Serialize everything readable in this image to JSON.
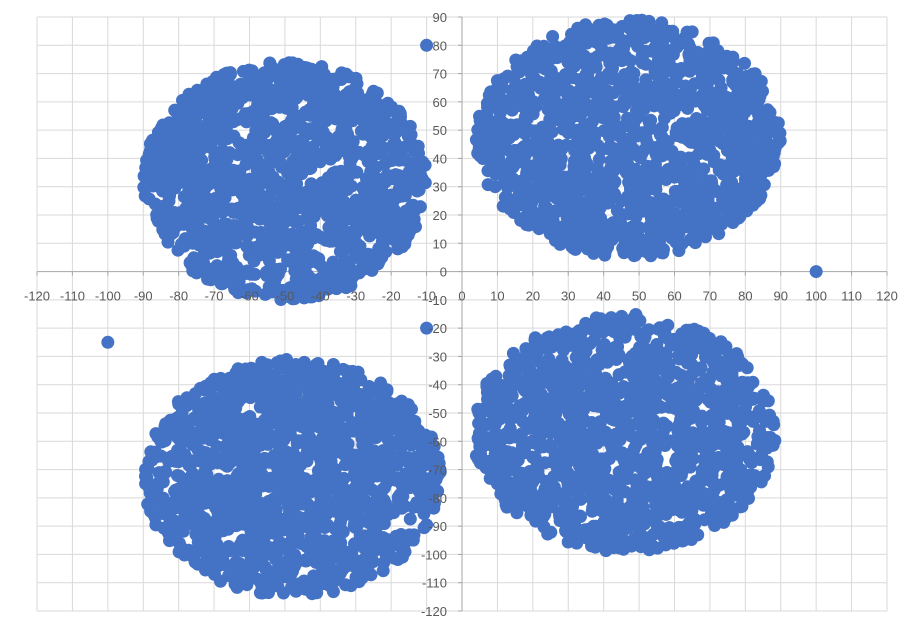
{
  "chart_data": {
    "type": "scatter",
    "title": "",
    "xlabel": "",
    "ylabel": "",
    "xlim": [
      -120,
      120
    ],
    "ylim": [
      -120,
      90
    ],
    "x_ticks": [
      -120,
      -110,
      -100,
      -90,
      -80,
      -70,
      -60,
      -50,
      -40,
      -30,
      -20,
      -10,
      0,
      10,
      20,
      30,
      40,
      50,
      60,
      70,
      80,
      90,
      100,
      110,
      120
    ],
    "x_tick_labels": [
      "-120",
      "-110",
      "-100",
      "-90",
      "-80",
      "-70",
      "-60",
      "-50",
      "-40",
      "-30",
      "-20",
      "-10",
      "0",
      "10",
      "20",
      "30",
      "40",
      "50",
      "60",
      "70",
      "80",
      "90",
      "100",
      "110",
      "120"
    ],
    "y_ticks": [
      90,
      80,
      70,
      60,
      50,
      40,
      30,
      20,
      10,
      0,
      -10,
      -20,
      -30,
      -40,
      -50,
      -60,
      -70,
      -80,
      -90,
      -100,
      -110,
      -120
    ],
    "y_tick_labels": [
      "90",
      "80",
      "70",
      "60",
      "50",
      "40",
      "30",
      "20",
      "10",
      "0",
      "-10",
      "-20",
      "-30",
      "-40",
      "-50",
      "-60",
      "-70",
      "-80",
      "-90",
      "-100",
      "-110",
      "-120"
    ],
    "grid": true,
    "legend": "none",
    "marker_color": "#4472c4",
    "clusters": [
      {
        "center": [
          -50,
          32
        ],
        "radius_x": 40,
        "radius_y": 42,
        "approx_points": 1400
      },
      {
        "center": [
          47,
          47
        ],
        "radius_x": 43,
        "radius_y": 42,
        "approx_points": 1400
      },
      {
        "center": [
          -48,
          -73
        ],
        "radius_x": 42,
        "radius_y": 42,
        "approx_points": 1400
      },
      {
        "center": [
          46,
          -57
        ],
        "radius_x": 43,
        "radius_y": 42,
        "approx_points": 1400
      }
    ],
    "outliers": [
      {
        "x": -10,
        "y": 80
      },
      {
        "x": 100,
        "y": 0
      },
      {
        "x": -100,
        "y": -25
      },
      {
        "x": -10,
        "y": -20
      }
    ]
  }
}
